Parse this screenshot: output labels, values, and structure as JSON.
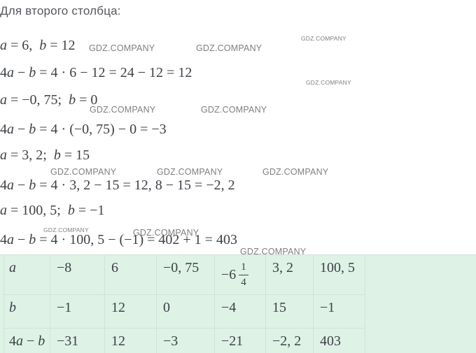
{
  "title": "Для второго столбца:",
  "watermark": {
    "text": "GDZ.COMPANY"
  },
  "math": {
    "lines": [
      "a = 6,  b = 12",
      "4a − b = 4 · 6 − 12 = 24 − 12 = 12",
      "a = −0, 75;  b = 0",
      "4a − b = 4 · (−0, 75) − 0 = −3",
      "a = 3, 2;  b = 15",
      "4a − b = 4 · 3, 2 − 15 = 12, 8 − 15 = −2, 2",
      "a = 100, 5;  b = −1",
      "4a − b = 4 · 100, 5 − (−1) = 402 + 1 = 403"
    ]
  },
  "table": {
    "rows": [
      {
        "label": "a",
        "cells": [
          "−8",
          "6",
          "−0, 75",
          {
            "whole": "−6",
            "num": "1",
            "den": "4"
          },
          "3, 2",
          "100, 5"
        ]
      },
      {
        "label": "b",
        "cells": [
          "−1",
          "12",
          "0",
          "−4",
          "15",
          "−1"
        ]
      },
      {
        "label": "4a − b",
        "cells": [
          "−31",
          "12",
          "−3",
          "−21",
          "−2, 2",
          "403"
        ]
      }
    ]
  },
  "colors": {
    "title": "#54575c",
    "math": "#3d4147",
    "watermark": "#7d7f82",
    "table_background": "#def2e6",
    "table_border": "#cfe3d7"
  }
}
